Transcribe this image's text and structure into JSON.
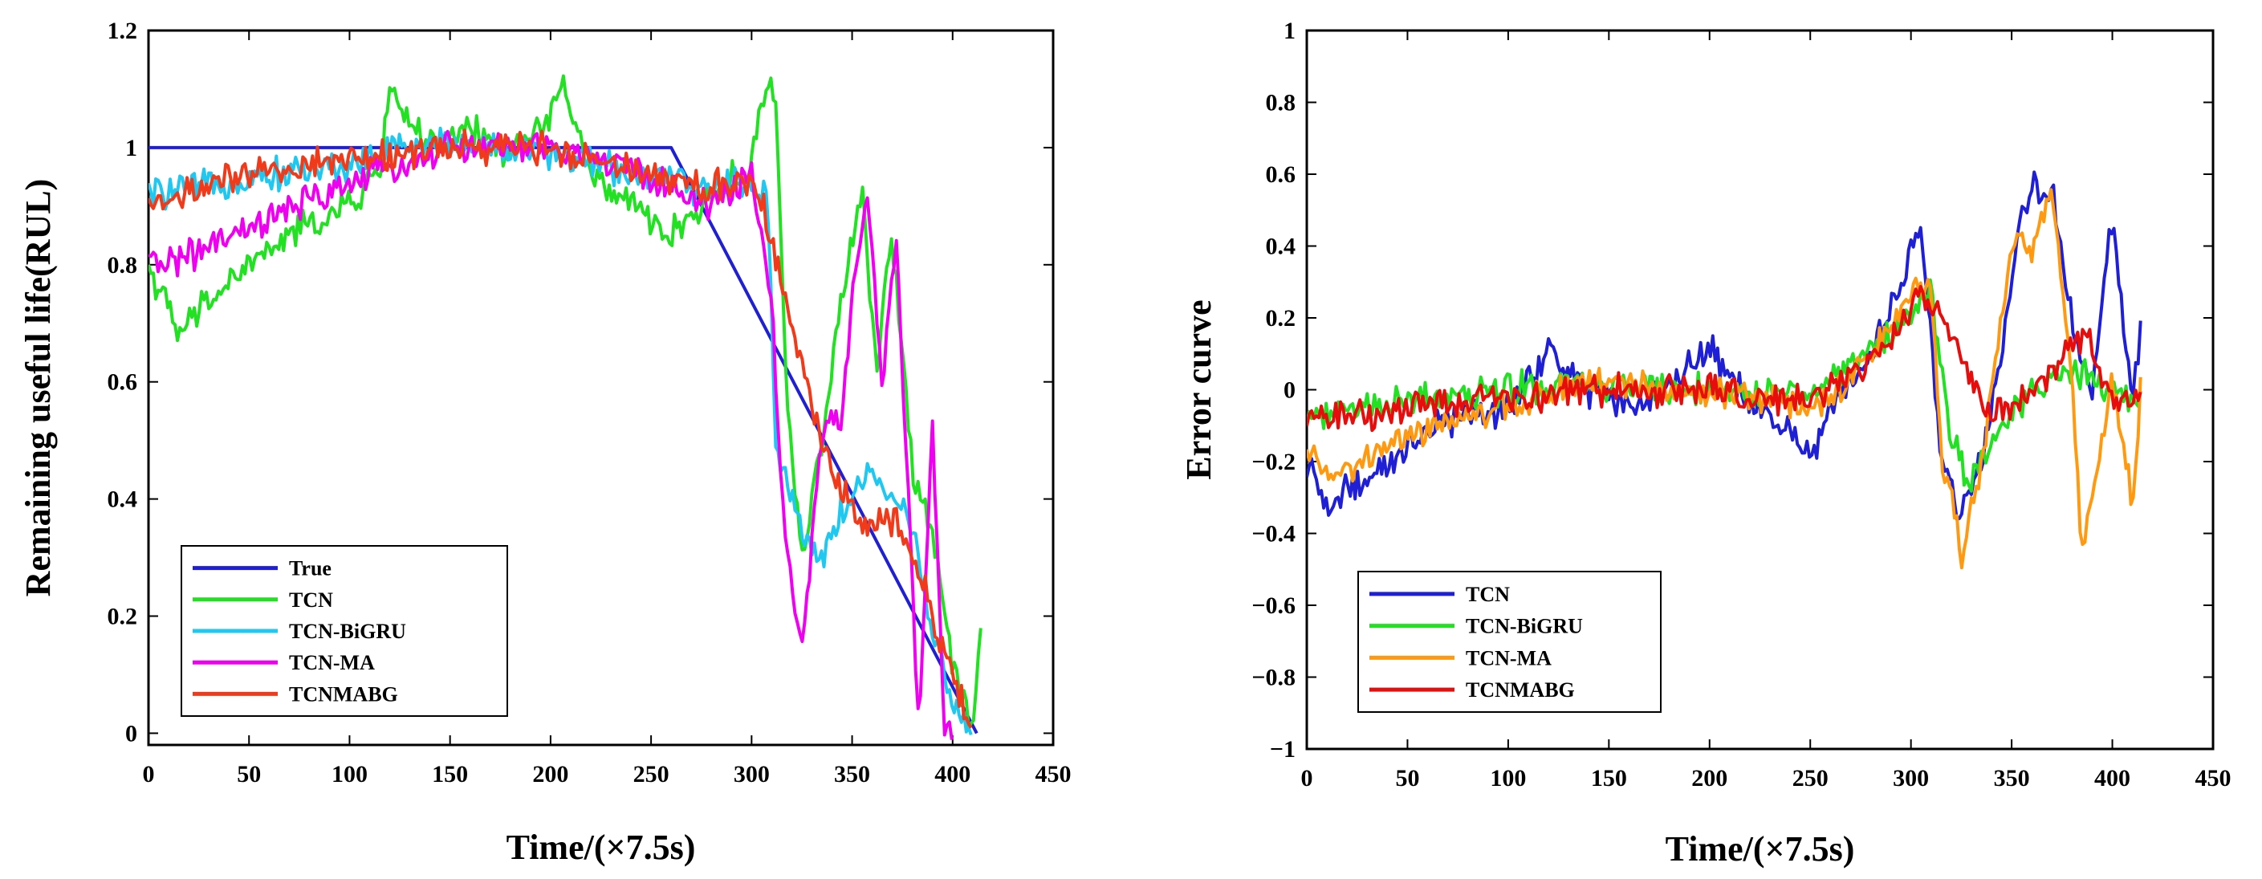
{
  "chart_data": [
    {
      "type": "line",
      "xlabel": "Time/(×7.5s)",
      "ylabel": "Remaining useful life(RUL)",
      "xlim": [
        0,
        450
      ],
      "ylim": [
        -0.02,
        1.2
      ],
      "xticks": [
        0,
        50,
        100,
        150,
        200,
        250,
        300,
        350,
        400,
        450
      ],
      "yticks": [
        0,
        0.2,
        0.4,
        0.6,
        0.8,
        1,
        1.2
      ],
      "ytick_labels": [
        "0",
        "0.2",
        "0.4",
        "0.6",
        "0.8",
        "1",
        "1.2"
      ],
      "legend_position": "bottom-left",
      "series": [
        {
          "name": "True",
          "color": "#1f1fd6",
          "x": [
            0,
            260,
            412
          ],
          "y": [
            1.0,
            1.0,
            0.0
          ]
        },
        {
          "name": "TCN",
          "color": "#22e022",
          "x": [
            0,
            15,
            30,
            50,
            75,
            100,
            115,
            120,
            140,
            160,
            180,
            200,
            205,
            220,
            240,
            260,
            280,
            300,
            308,
            312,
            318,
            325,
            335,
            345,
            355,
            362,
            370,
            380,
            390,
            400,
            410,
            414
          ],
          "y": [
            0.8,
            0.68,
            0.74,
            0.8,
            0.86,
            0.9,
            0.96,
            1.1,
            1.0,
            1.03,
            0.99,
            1.05,
            1.12,
            0.95,
            0.9,
            0.85,
            0.92,
            0.97,
            1.12,
            1.08,
            0.55,
            0.3,
            0.5,
            0.75,
            0.92,
            0.62,
            0.85,
            0.45,
            0.35,
            0.12,
            0.02,
            0.16
          ]
        },
        {
          "name": "TCN-BiGRU",
          "color": "#1ec8f0",
          "x": [
            0,
            25,
            50,
            75,
            100,
            125,
            150,
            175,
            200,
            225,
            250,
            275,
            300,
            308,
            312,
            318,
            325,
            335,
            345,
            360,
            370,
            380,
            390,
            400,
            410
          ],
          "y": [
            0.92,
            0.93,
            0.95,
            0.96,
            0.97,
            1.0,
            1.01,
            1.0,
            0.99,
            0.97,
            0.95,
            0.93,
            0.94,
            0.92,
            0.5,
            0.42,
            0.35,
            0.3,
            0.38,
            0.45,
            0.4,
            0.35,
            0.18,
            0.05,
            0.0
          ]
        },
        {
          "name": "TCN-MA",
          "color": "#f000f0",
          "x": [
            0,
            25,
            50,
            75,
            100,
            125,
            150,
            175,
            200,
            225,
            250,
            275,
            300,
            310,
            315,
            320,
            325,
            335,
            345,
            352,
            358,
            365,
            372,
            378,
            383,
            390,
            396,
            400
          ],
          "y": [
            0.8,
            0.82,
            0.86,
            0.9,
            0.94,
            0.97,
            1.0,
            1.0,
            1.0,
            0.98,
            0.95,
            0.9,
            0.95,
            0.75,
            0.4,
            0.25,
            0.15,
            0.5,
            0.55,
            0.82,
            0.9,
            0.6,
            0.85,
            0.4,
            0.0,
            0.52,
            0.0,
            0.0
          ]
        },
        {
          "name": "TCNMABG",
          "color": "#f03a1a",
          "x": [
            0,
            25,
            50,
            75,
            100,
            125,
            150,
            175,
            200,
            225,
            250,
            275,
            300,
            310,
            320,
            330,
            340,
            350,
            360,
            370,
            380,
            390,
            400,
            410
          ],
          "y": [
            0.9,
            0.93,
            0.95,
            0.97,
            0.98,
            0.99,
            1.0,
            1.0,
            1.0,
            0.98,
            0.96,
            0.93,
            0.95,
            0.85,
            0.7,
            0.55,
            0.45,
            0.38,
            0.36,
            0.37,
            0.32,
            0.2,
            0.1,
            0.0
          ]
        }
      ]
    },
    {
      "type": "line",
      "xlabel": "Time/(×7.5s)",
      "ylabel": "Error curve",
      "xlim": [
        0,
        450
      ],
      "ylim": [
        -1,
        1
      ],
      "xticks": [
        0,
        50,
        100,
        150,
        200,
        250,
        300,
        350,
        400,
        450
      ],
      "yticks": [
        -1,
        -0.8,
        -0.6,
        -0.4,
        -0.2,
        0,
        0.2,
        0.4,
        0.6,
        0.8,
        1
      ],
      "ytick_labels": [
        "−1",
        "−0.8",
        "−0.6",
        "−0.4",
        "−0.2",
        "0",
        "0.2",
        "0.4",
        "0.6",
        "0.8",
        "1"
      ],
      "legend_position": "bottom-left",
      "series": [
        {
          "name": "TCN",
          "color": "#1f1fd6",
          "x": [
            0,
            10,
            20,
            40,
            60,
            80,
            100,
            120,
            140,
            160,
            180,
            200,
            220,
            240,
            250,
            260,
            280,
            295,
            305,
            315,
            325,
            335,
            345,
            355,
            360,
            370,
            380,
            390,
            400,
            410,
            414
          ],
          "y": [
            -0.2,
            -0.33,
            -0.28,
            -0.2,
            -0.12,
            -0.08,
            -0.05,
            0.1,
            0.0,
            -0.05,
            0.02,
            0.12,
            -0.05,
            -0.1,
            -0.2,
            -0.05,
            0.1,
            0.3,
            0.47,
            -0.2,
            -0.35,
            -0.2,
            0.1,
            0.5,
            0.58,
            0.55,
            0.2,
            0.0,
            0.47,
            -0.05,
            0.17
          ]
        },
        {
          "name": "TCN-BiGRU",
          "color": "#22e022",
          "x": [
            0,
            25,
            50,
            75,
            100,
            125,
            150,
            175,
            200,
            225,
            250,
            275,
            290,
            300,
            310,
            315,
            320,
            330,
            345,
            360,
            380,
            400,
            414
          ],
          "y": [
            -0.08,
            -0.05,
            -0.03,
            -0.02,
            0.0,
            0.02,
            0.01,
            0.0,
            0.0,
            -0.02,
            0.0,
            0.1,
            0.15,
            0.2,
            0.28,
            0.05,
            -0.15,
            -0.25,
            -0.1,
            0.0,
            0.05,
            0.0,
            -0.05
          ]
        },
        {
          "name": "TCN-MA",
          "color": "#ff9a10",
          "x": [
            0,
            15,
            30,
            50,
            75,
            100,
            125,
            150,
            175,
            200,
            225,
            250,
            275,
            300,
            310,
            315,
            320,
            325,
            335,
            345,
            352,
            360,
            370,
            380,
            385,
            390,
            400,
            410,
            414
          ],
          "y": [
            -0.15,
            -0.25,
            -0.18,
            -0.12,
            -0.08,
            -0.05,
            0.0,
            0.02,
            0.0,
            0.0,
            -0.02,
            -0.05,
            0.05,
            0.28,
            0.3,
            -0.2,
            -0.3,
            -0.45,
            -0.2,
            0.2,
            0.45,
            0.38,
            0.55,
            0.0,
            -0.45,
            -0.3,
            0.05,
            -0.3,
            0.0
          ]
        },
        {
          "name": "TCNMABG",
          "color": "#e80d0d",
          "x": [
            0,
            25,
            50,
            75,
            100,
            125,
            150,
            175,
            200,
            225,
            250,
            275,
            295,
            305,
            315,
            325,
            340,
            350,
            360,
            370,
            380,
            390,
            400,
            410,
            414
          ],
          "y": [
            -0.08,
            -0.07,
            -0.05,
            -0.03,
            -0.02,
            -0.01,
            0.0,
            0.0,
            0.0,
            -0.02,
            -0.03,
            0.05,
            0.18,
            0.27,
            0.2,
            0.1,
            -0.08,
            -0.05,
            0.0,
            0.05,
            0.15,
            0.12,
            -0.05,
            0.0,
            -0.03
          ]
        }
      ]
    }
  ]
}
